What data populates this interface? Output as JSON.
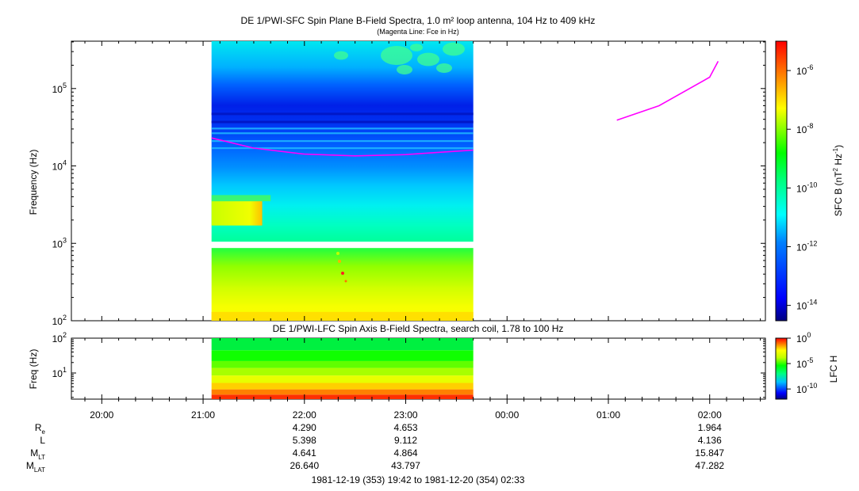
{
  "chart_data": [
    {
      "type": "heatmap",
      "title": "DE 1/PWI-SFC  Spin Plane B-Field Spectra, 1.0 m² loop antenna, 104 Hz to 409 kHz",
      "subtitle": "(Magenta Line: Fce in Hz)",
      "ylabel": "Frequency (Hz)",
      "yscale": "log",
      "ylim": [
        100,
        409000
      ],
      "ytick_labels": [
        {
          "base": "10",
          "exp": "2"
        },
        {
          "base": "10",
          "exp": "3"
        },
        {
          "base": "10",
          "exp": "4"
        },
        {
          "base": "10",
          "exp": "5"
        }
      ],
      "data_time_range": [
        "21:05",
        "23:40"
      ],
      "colorbar": {
        "label": "SFC B (nT² Hz⁻¹)",
        "label_main": "SFC B (nT",
        "label_sup1": "2",
        "label_mid": " Hz",
        "label_sup2": "-1",
        "label_end": ")",
        "scale": "log",
        "range": [
          3e-15,
          1e-05
        ],
        "tick_labels": [
          {
            "base": "10",
            "exp": "-6"
          },
          {
            "base": "10",
            "exp": "-8"
          },
          {
            "base": "10",
            "exp": "-10"
          },
          {
            "base": "10",
            "exp": "-12"
          },
          {
            "base": "10",
            "exp": "-14"
          }
        ]
      },
      "fce_line": {
        "color": "#ff00ff",
        "segments": [
          {
            "t": [
              "21:05",
              "21:30",
              "22:00",
              "22:30",
              "23:00",
              "23:20",
              "23:40"
            ],
            "f": [
              23000,
              17000,
              14200,
              13500,
              14000,
              15000,
              16000
            ]
          },
          {
            "t": [
              "01:05",
              "01:30",
              "02:00",
              "02:05"
            ],
            "f": [
              39000,
              60000,
              140000,
              225000
            ]
          }
        ]
      }
    },
    {
      "type": "heatmap",
      "title": "DE 1/PWI-LFC  Spin Axis B-Field Spectra, search coil, 1.78 to 100 Hz",
      "ylabel": "Freq (Hz)",
      "yscale": "log",
      "ylim": [
        1.78,
        100
      ],
      "ytick_labels": [
        {
          "base": "10",
          "exp": "1"
        },
        {
          "base": "10",
          "exp": "2"
        }
      ],
      "data_time_range": [
        "21:05",
        "23:40"
      ],
      "colorbar": {
        "label": "LFC H",
        "scale": "log",
        "range": [
          1e-12,
          1
        ],
        "tick_labels": [
          {
            "base": "10",
            "exp": "0"
          },
          {
            "base": "10",
            "exp": "-5"
          },
          {
            "base": "10",
            "exp": "-10"
          }
        ]
      }
    }
  ],
  "time_axis": {
    "labels": [
      "20:00",
      "21:00",
      "22:00",
      "23:00",
      "00:00",
      "01:00",
      "02:00"
    ]
  },
  "ephemeris": {
    "rows": [
      {
        "label": "R",
        "sub": "e",
        "values": [
          "4.290",
          "4.653",
          "1.964"
        ]
      },
      {
        "label": "L",
        "sub": "",
        "values": [
          "5.398",
          "9.112",
          "4.136"
        ]
      },
      {
        "label": "M",
        "sub": "LT",
        "values": [
          "4.641",
          "4.864",
          "15.847"
        ]
      },
      {
        "label": "M",
        "sub": "LAT",
        "values": [
          "26.640",
          "43.797",
          "47.282"
        ]
      }
    ],
    "value_times": [
      "22:00",
      "23:00",
      "02:00"
    ]
  },
  "footer": "1981-12-19 (353) 19:42 to 1981-12-20 (354) 02:33",
  "colors": {
    "fce_line": "#ff00ff",
    "colormap": [
      "#000080",
      "#0000ff",
      "#0080ff",
      "#00ffff",
      "#00ff80",
      "#00ff00",
      "#80ff00",
      "#ffff00",
      "#ff8000",
      "#ff0000"
    ]
  }
}
